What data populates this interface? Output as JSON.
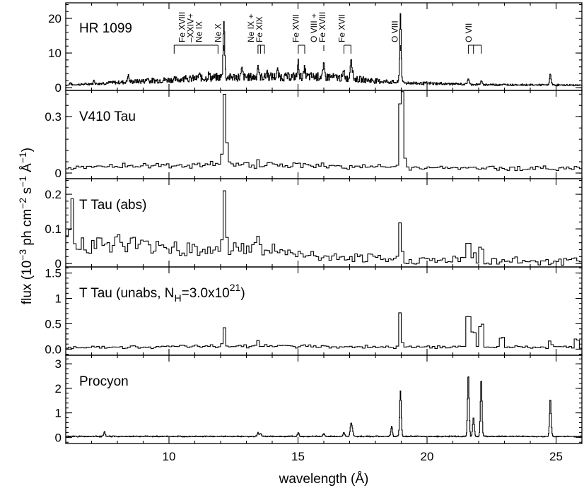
{
  "chart_data": {
    "type": "line",
    "xlabel": "wavelength (Å)",
    "xlim": [
      6,
      26
    ],
    "x_ticks": [
      "10",
      "15",
      "20",
      "25"
    ],
    "ylabel": {
      "prefix": "flux (10",
      "exp1": "−3",
      "mid1": " ph cm",
      "exp2": "−2",
      "mid2": " s",
      "exp3": "−1",
      "mid3": " Å",
      "exp4": "−1",
      "suffix": ")"
    },
    "panels": [
      {
        "label": "HR 1099",
        "ylim": [
          -0.8,
          24.5
        ],
        "y_ticks": [
          "0",
          "10",
          "20"
        ],
        "y_tick_values": [
          0,
          10,
          20
        ],
        "baseline": 0.4,
        "noise": 0.25,
        "bin": 0.02,
        "continuum": [
          [
            6,
            0.3
          ],
          [
            8,
            1.1
          ],
          [
            12,
            2.6
          ],
          [
            16,
            2.8
          ],
          [
            17,
            2.2
          ],
          [
            19,
            1.0
          ],
          [
            22,
            0.5
          ],
          [
            26,
            0.3
          ]
        ],
        "lines": [
          [
            6.18,
            0.7
          ],
          [
            7.1,
            0.9
          ],
          [
            8.42,
            2.0
          ],
          [
            9.17,
            0.9
          ],
          [
            10.65,
            1.3
          ],
          [
            11.17,
            1.1
          ],
          [
            11.55,
            1.1
          ],
          [
            12.13,
            17.0
          ],
          [
            12.83,
            2.2
          ],
          [
            13.45,
            3.4
          ],
          [
            13.8,
            1.6
          ],
          [
            14.2,
            1.8
          ],
          [
            15.01,
            4.0
          ],
          [
            15.26,
            2.2
          ],
          [
            16.0,
            3.0
          ],
          [
            16.78,
            1.8
          ],
          [
            17.05,
            5.5
          ],
          [
            17.1,
            2.5
          ],
          [
            18.97,
            20.0
          ],
          [
            21.6,
            1.8
          ],
          [
            22.1,
            1.0
          ],
          [
            24.78,
            3.3
          ]
        ],
        "line_width": 0.028
      },
      {
        "label": "V410 Tau",
        "ylim": [
          -0.03,
          0.44
        ],
        "y_ticks": [
          "0",
          "0.3"
        ],
        "y_tick_values": [
          0,
          0.3
        ],
        "baseline": 0.015,
        "noise": 0.018,
        "bin": 0.1,
        "continuum": [
          [
            6,
            0.01
          ],
          [
            8,
            0.022
          ],
          [
            13,
            0.03
          ],
          [
            17,
            0.02
          ],
          [
            20,
            0.012
          ],
          [
            26,
            0.01
          ]
        ],
        "lines": [
          [
            12.13,
            0.4
          ],
          [
            12.23,
            0.15
          ],
          [
            18.97,
            0.39
          ],
          [
            19.07,
            0.39
          ],
          [
            13.45,
            0.03
          ],
          [
            15.01,
            0.02
          ]
        ],
        "line_width": 0.04
      },
      {
        "label": "T Tau (abs)",
        "ylim": [
          -0.01,
          0.245
        ],
        "y_ticks": [
          "0",
          "0.1",
          "0.2"
        ],
        "y_tick_values": [
          0,
          0.1,
          0.2
        ],
        "baseline": 0.003,
        "noise": 0.025,
        "bin": 0.1,
        "continuum": [
          [
            6,
            0.06
          ],
          [
            9,
            0.05
          ],
          [
            12,
            0.035
          ],
          [
            13.5,
            0.04
          ],
          [
            15,
            0.022
          ],
          [
            17,
            0.01
          ],
          [
            20,
            0.006
          ],
          [
            26,
            0.004
          ]
        ],
        "lines": [
          [
            6.23,
            0.16
          ],
          [
            12.13,
            0.2
          ],
          [
            12.23,
            0.06
          ],
          [
            13.45,
            0.05
          ],
          [
            18.97,
            0.13
          ],
          [
            21.6,
            0.11
          ],
          [
            21.8,
            0.04
          ],
          [
            22.1,
            0.07
          ]
        ],
        "line_width": 0.04
      },
      {
        "label": "T Tau (unabs, N",
        "label_sub": "H",
        "label_mid": "=3.0x10",
        "label_sup": "21",
        "label_end": ")",
        "ylim": [
          -0.12,
          1.62
        ],
        "y_ticks": [
          "0.0",
          "0.5",
          "1",
          "1.5"
        ],
        "y_tick_values": [
          0,
          0.5,
          1.0,
          1.5
        ],
        "baseline": 0.005,
        "noise": 0.035,
        "bin": 0.1,
        "continuum": [
          [
            6,
            0.03
          ],
          [
            10,
            0.04
          ],
          [
            13,
            0.06
          ],
          [
            15,
            0.05
          ],
          [
            17,
            0.04
          ],
          [
            20,
            0.04
          ],
          [
            24,
            0.03
          ],
          [
            26,
            0.03
          ]
        ],
        "lines": [
          [
            12.13,
            0.42
          ],
          [
            13.45,
            0.12
          ],
          [
            18.97,
            0.75
          ],
          [
            21.6,
            1.33
          ],
          [
            21.8,
            0.6
          ],
          [
            22.1,
            0.93
          ],
          [
            22.9,
            0.45
          ],
          [
            24.78,
            0.18
          ],
          [
            25.8,
            0.35
          ]
        ],
        "line_width": 0.04
      },
      {
        "label": "Procyon",
        "ylim": [
          -0.25,
          3.35
        ],
        "y_ticks": [
          "0",
          "1",
          "2",
          "3"
        ],
        "y_tick_values": [
          0,
          1,
          2,
          3
        ],
        "baseline": 0.01,
        "noise": 0.03,
        "bin": 0.02,
        "continuum": [
          [
            6,
            0.03
          ],
          [
            26,
            0.03
          ]
        ],
        "lines": [
          [
            7.5,
            0.18
          ],
          [
            13.45,
            0.15
          ],
          [
            13.55,
            0.12
          ],
          [
            15.01,
            0.15
          ],
          [
            16.0,
            0.12
          ],
          [
            16.78,
            0.15
          ],
          [
            17.05,
            0.45
          ],
          [
            17.1,
            0.3
          ],
          [
            18.63,
            0.4
          ],
          [
            18.97,
            1.85
          ],
          [
            21.6,
            2.55
          ],
          [
            21.8,
            0.8
          ],
          [
            22.1,
            2.38
          ],
          [
            24.78,
            1.55
          ]
        ],
        "line_width": 0.03
      }
    ],
    "line_ids": [
      {
        "text": [
          "Fe XVIII",
          "–XXIV+",
          "Ne IX"
        ],
        "x": [
          10.2,
          11.9
        ]
      },
      {
        "text": [
          "Ne X"
        ],
        "x": [
          12.13
        ]
      },
      {
        "text": [
          "Ne IX +",
          "Fe XIX"
        ],
        "x": [
          13.45,
          13.55,
          13.7
        ]
      },
      {
        "text": [
          "Fe XVII"
        ],
        "x": [
          15.01,
          15.26
        ]
      },
      {
        "text": [
          "O VIII +",
          "Fe XVIII"
        ],
        "x": [
          16.0
        ]
      },
      {
        "text": [
          "Fe XVII"
        ],
        "x": [
          16.78,
          17.05
        ]
      },
      {
        "text": [
          "O VIII"
        ],
        "x": [
          18.97
        ]
      },
      {
        "text": [
          "O VII"
        ],
        "x": [
          21.6,
          21.8,
          22.1
        ]
      }
    ]
  }
}
